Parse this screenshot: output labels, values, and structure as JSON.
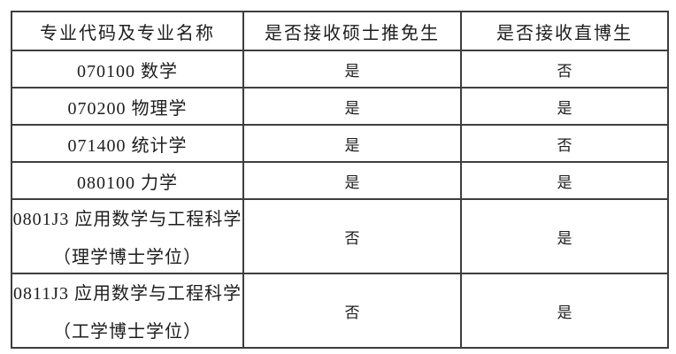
{
  "table": {
    "headers": [
      "专业代码及专业名称",
      "是否接收硕士推免生",
      "是否接收直博生"
    ],
    "rows": [
      {
        "major": "070100 数学",
        "master": "是",
        "phd": "否"
      },
      {
        "major": "070200 物理学",
        "master": "是",
        "phd": "是"
      },
      {
        "major": "071400 统计学",
        "master": "是",
        "phd": "否"
      },
      {
        "major": "080100 力学",
        "master": "是",
        "phd": "是"
      },
      {
        "major": "0801J3 应用数学与工程科学",
        "major_line2": "（理学博士学位）",
        "master": "否",
        "phd": "是"
      },
      {
        "major": "0811J3 应用数学与工程科学",
        "major_line2": "（工学博士学位）",
        "master": "否",
        "phd": "是"
      }
    ],
    "colors": {
      "border": "#3e3e3e",
      "text": "#1d1d1d",
      "background": "#ffffff"
    }
  }
}
